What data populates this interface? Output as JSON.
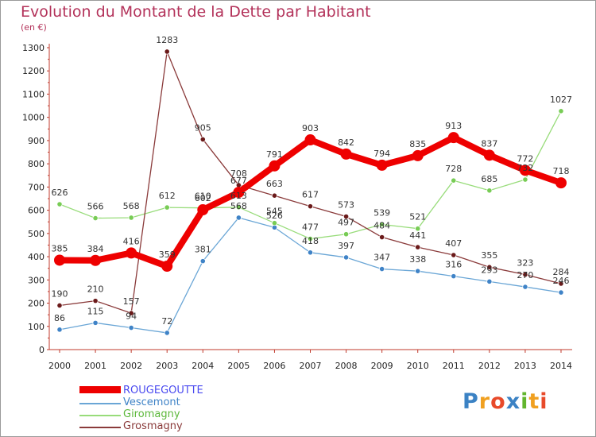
{
  "title": "Evolution du Montant de la Dette par Habitant",
  "subtitle": "(en €)",
  "logo": {
    "text": "Proxiti",
    "letters": [
      {
        "ch": "P",
        "color": "#3b82c4"
      },
      {
        "ch": "r",
        "color": "#f0a020"
      },
      {
        "ch": "o",
        "color": "#e84a2a"
      },
      {
        "ch": "x",
        "color": "#3b82c4"
      },
      {
        "ch": "i",
        "color": "#62b52e"
      },
      {
        "ch": "t",
        "color": "#f0a020"
      },
      {
        "ch": "i",
        "color": "#e84a2a"
      }
    ]
  },
  "chart_data": {
    "type": "line",
    "title": "Evolution du Montant de la Dette par Habitant",
    "ylabel": "(en €)",
    "x": [
      "2000",
      "2001",
      "2002",
      "2003",
      "2004",
      "2005",
      "2006",
      "2007",
      "2008",
      "2009",
      "2010",
      "2011",
      "2012",
      "2013",
      "2014"
    ],
    "ylim": [
      0,
      1300
    ],
    "yticks": [
      "0",
      "100",
      "200",
      "300",
      "400",
      "500",
      "600",
      "700",
      "800",
      "900",
      "1000",
      "1100",
      "1200",
      "1300"
    ],
    "grid": false,
    "legend_placement": "bottom-left",
    "series": [
      {
        "name": "ROUGEGOUTTE",
        "color": "#ee0000",
        "marker_fill": "#ee0000",
        "text_color": "#4a4af0",
        "bold": true,
        "values": [
          385,
          384,
          416,
          359,
          602,
          677,
          791,
          903,
          842,
          794,
          835,
          913,
          837,
          772,
          718
        ],
        "labels": [
          "385",
          "384",
          "416",
          "359",
          "602",
          "677",
          "791",
          "903",
          "842",
          "794",
          "835",
          "913",
          "837",
          "772",
          "718"
        ]
      },
      {
        "name": "Vescemont",
        "color": "#6aa6d6",
        "marker_fill": "#3f83c7",
        "text_color": "#3f83c7",
        "bold": false,
        "values": [
          86,
          115,
          94,
          72,
          381,
          568,
          526,
          418,
          397,
          347,
          338,
          316,
          293,
          270,
          246
        ],
        "labels": [
          "86",
          "115",
          "94",
          "72",
          "381",
          "568",
          "526",
          "418",
          "397",
          "347",
          "338",
          "316",
          "293",
          "270",
          "246"
        ]
      },
      {
        "name": "Giromagny",
        "color": "#98dc7a",
        "marker_fill": "#78cc55",
        "text_color": "#5cb83a",
        "bold": false,
        "values": [
          626,
          566,
          568,
          612,
          610,
          613,
          545,
          477,
          497,
          539,
          521,
          728,
          685,
          732,
          1027
        ],
        "labels": [
          "626",
          "566",
          "568",
          "612",
          "610",
          "613",
          "545",
          "477",
          "497",
          "539",
          "521",
          "728",
          "685",
          "732",
          "1027"
        ]
      },
      {
        "name": "Grosmagny",
        "color": "#8a3a3a",
        "marker_fill": "#6b1a1a",
        "text_color": "#8a3a3a",
        "bold": false,
        "values": [
          190,
          210,
          157,
          1283,
          905,
          708,
          663,
          617,
          573,
          484,
          441,
          407,
          355,
          323,
          284
        ],
        "labels": [
          "190",
          "210",
          "157",
          "1283",
          "905",
          "708",
          "663",
          "617",
          "573",
          "484",
          "441",
          "407",
          "355",
          "323",
          "284"
        ]
      }
    ]
  }
}
